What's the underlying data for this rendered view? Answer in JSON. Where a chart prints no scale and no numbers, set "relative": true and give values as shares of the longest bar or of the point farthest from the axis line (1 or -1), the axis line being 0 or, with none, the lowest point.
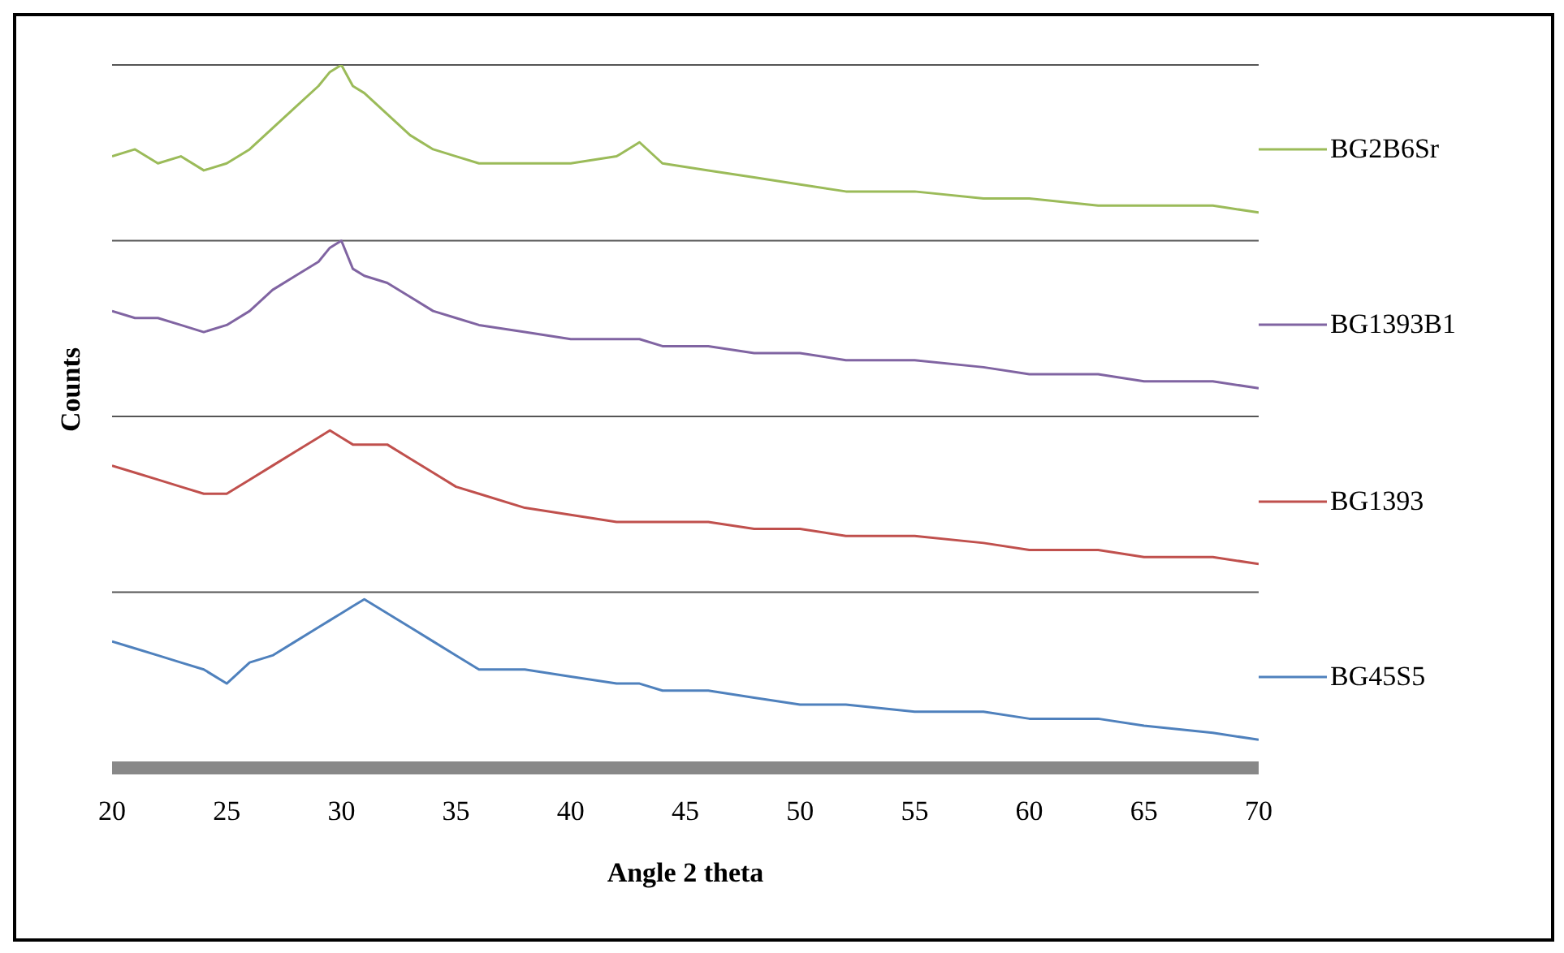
{
  "chart_data": {
    "type": "line",
    "relative": true,
    "xlabel": "Angle 2 theta",
    "ylabel": "Counts",
    "xlim": [
      20,
      70
    ],
    "xticks": [
      20,
      25,
      30,
      35,
      40,
      45,
      50,
      55,
      60,
      65,
      70
    ],
    "grid": "y",
    "legend": "right",
    "marker": "none",
    "line_style": "solid",
    "x": [
      20,
      21,
      22,
      23,
      24,
      25,
      26,
      27,
      28,
      29,
      29.5,
      30,
      30.5,
      31,
      32,
      33,
      34,
      35,
      36,
      38,
      40,
      42,
      43,
      44,
      46,
      48,
      50,
      52,
      55,
      58,
      60,
      63,
      65,
      68,
      70
    ],
    "series": [
      {
        "name": "BG2B6Sr",
        "color": "#9bbb59",
        "values": [
          0.87,
          0.88,
          0.86,
          0.87,
          0.85,
          0.86,
          0.88,
          0.91,
          0.94,
          0.97,
          0.99,
          1.0,
          0.97,
          0.96,
          0.93,
          0.9,
          0.88,
          0.87,
          0.86,
          0.86,
          0.86,
          0.87,
          0.89,
          0.86,
          0.85,
          0.84,
          0.83,
          0.82,
          0.82,
          0.81,
          0.81,
          0.8,
          0.8,
          0.8,
          0.79
        ]
      },
      {
        "name": "BG1393B1",
        "color": "#8064a2",
        "values": [
          0.65,
          0.64,
          0.64,
          0.63,
          0.62,
          0.63,
          0.65,
          0.68,
          0.7,
          0.72,
          0.74,
          0.75,
          0.71,
          0.7,
          0.69,
          0.67,
          0.65,
          0.64,
          0.63,
          0.62,
          0.61,
          0.61,
          0.61,
          0.6,
          0.6,
          0.59,
          0.59,
          0.58,
          0.58,
          0.57,
          0.56,
          0.56,
          0.55,
          0.55,
          0.54
        ]
      },
      {
        "name": "BG1393",
        "color": "#c0504d",
        "values": [
          0.43,
          0.42,
          0.41,
          0.4,
          0.39,
          0.39,
          0.41,
          0.43,
          0.45,
          0.47,
          0.48,
          0.47,
          0.46,
          0.46,
          0.46,
          0.44,
          0.42,
          0.4,
          0.39,
          0.37,
          0.36,
          0.35,
          0.35,
          0.35,
          0.35,
          0.34,
          0.34,
          0.33,
          0.33,
          0.32,
          0.31,
          0.31,
          0.3,
          0.3,
          0.29
        ]
      },
      {
        "name": "BG45S5",
        "color": "#4f81bd",
        "values": [
          0.18,
          0.17,
          0.16,
          0.15,
          0.14,
          0.12,
          0.15,
          0.16,
          0.18,
          0.2,
          0.21,
          0.22,
          0.23,
          0.24,
          0.22,
          0.2,
          0.18,
          0.16,
          0.14,
          0.14,
          0.13,
          0.12,
          0.12,
          0.11,
          0.11,
          0.1,
          0.09,
          0.09,
          0.08,
          0.08,
          0.07,
          0.07,
          0.06,
          0.05,
          0.04
        ]
      }
    ]
  }
}
